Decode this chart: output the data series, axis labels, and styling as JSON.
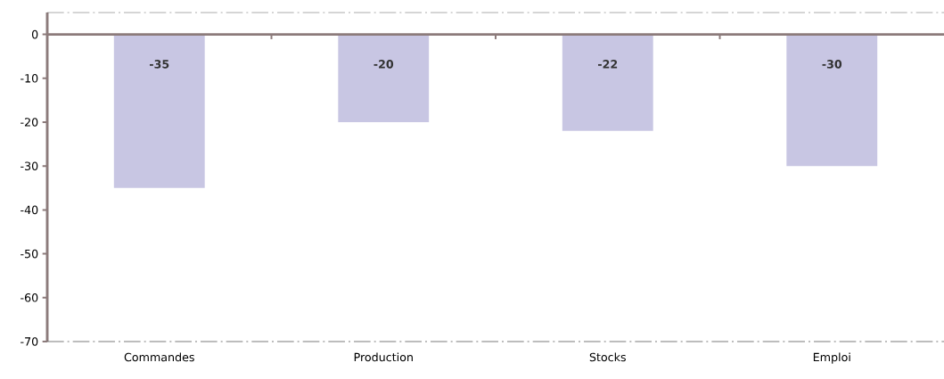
{
  "chart_data": {
    "type": "bar",
    "categories": [
      "Commandes",
      "Production",
      "Stocks",
      "Emploi"
    ],
    "values": [
      -35,
      -20,
      -22,
      -30
    ],
    "color": "#c8c6e3",
    "ylim": [
      -70,
      5
    ],
    "yticks": [
      -70,
      -60,
      -50,
      -40,
      -30,
      -20,
      -10,
      0
    ],
    "data_labels": true
  }
}
